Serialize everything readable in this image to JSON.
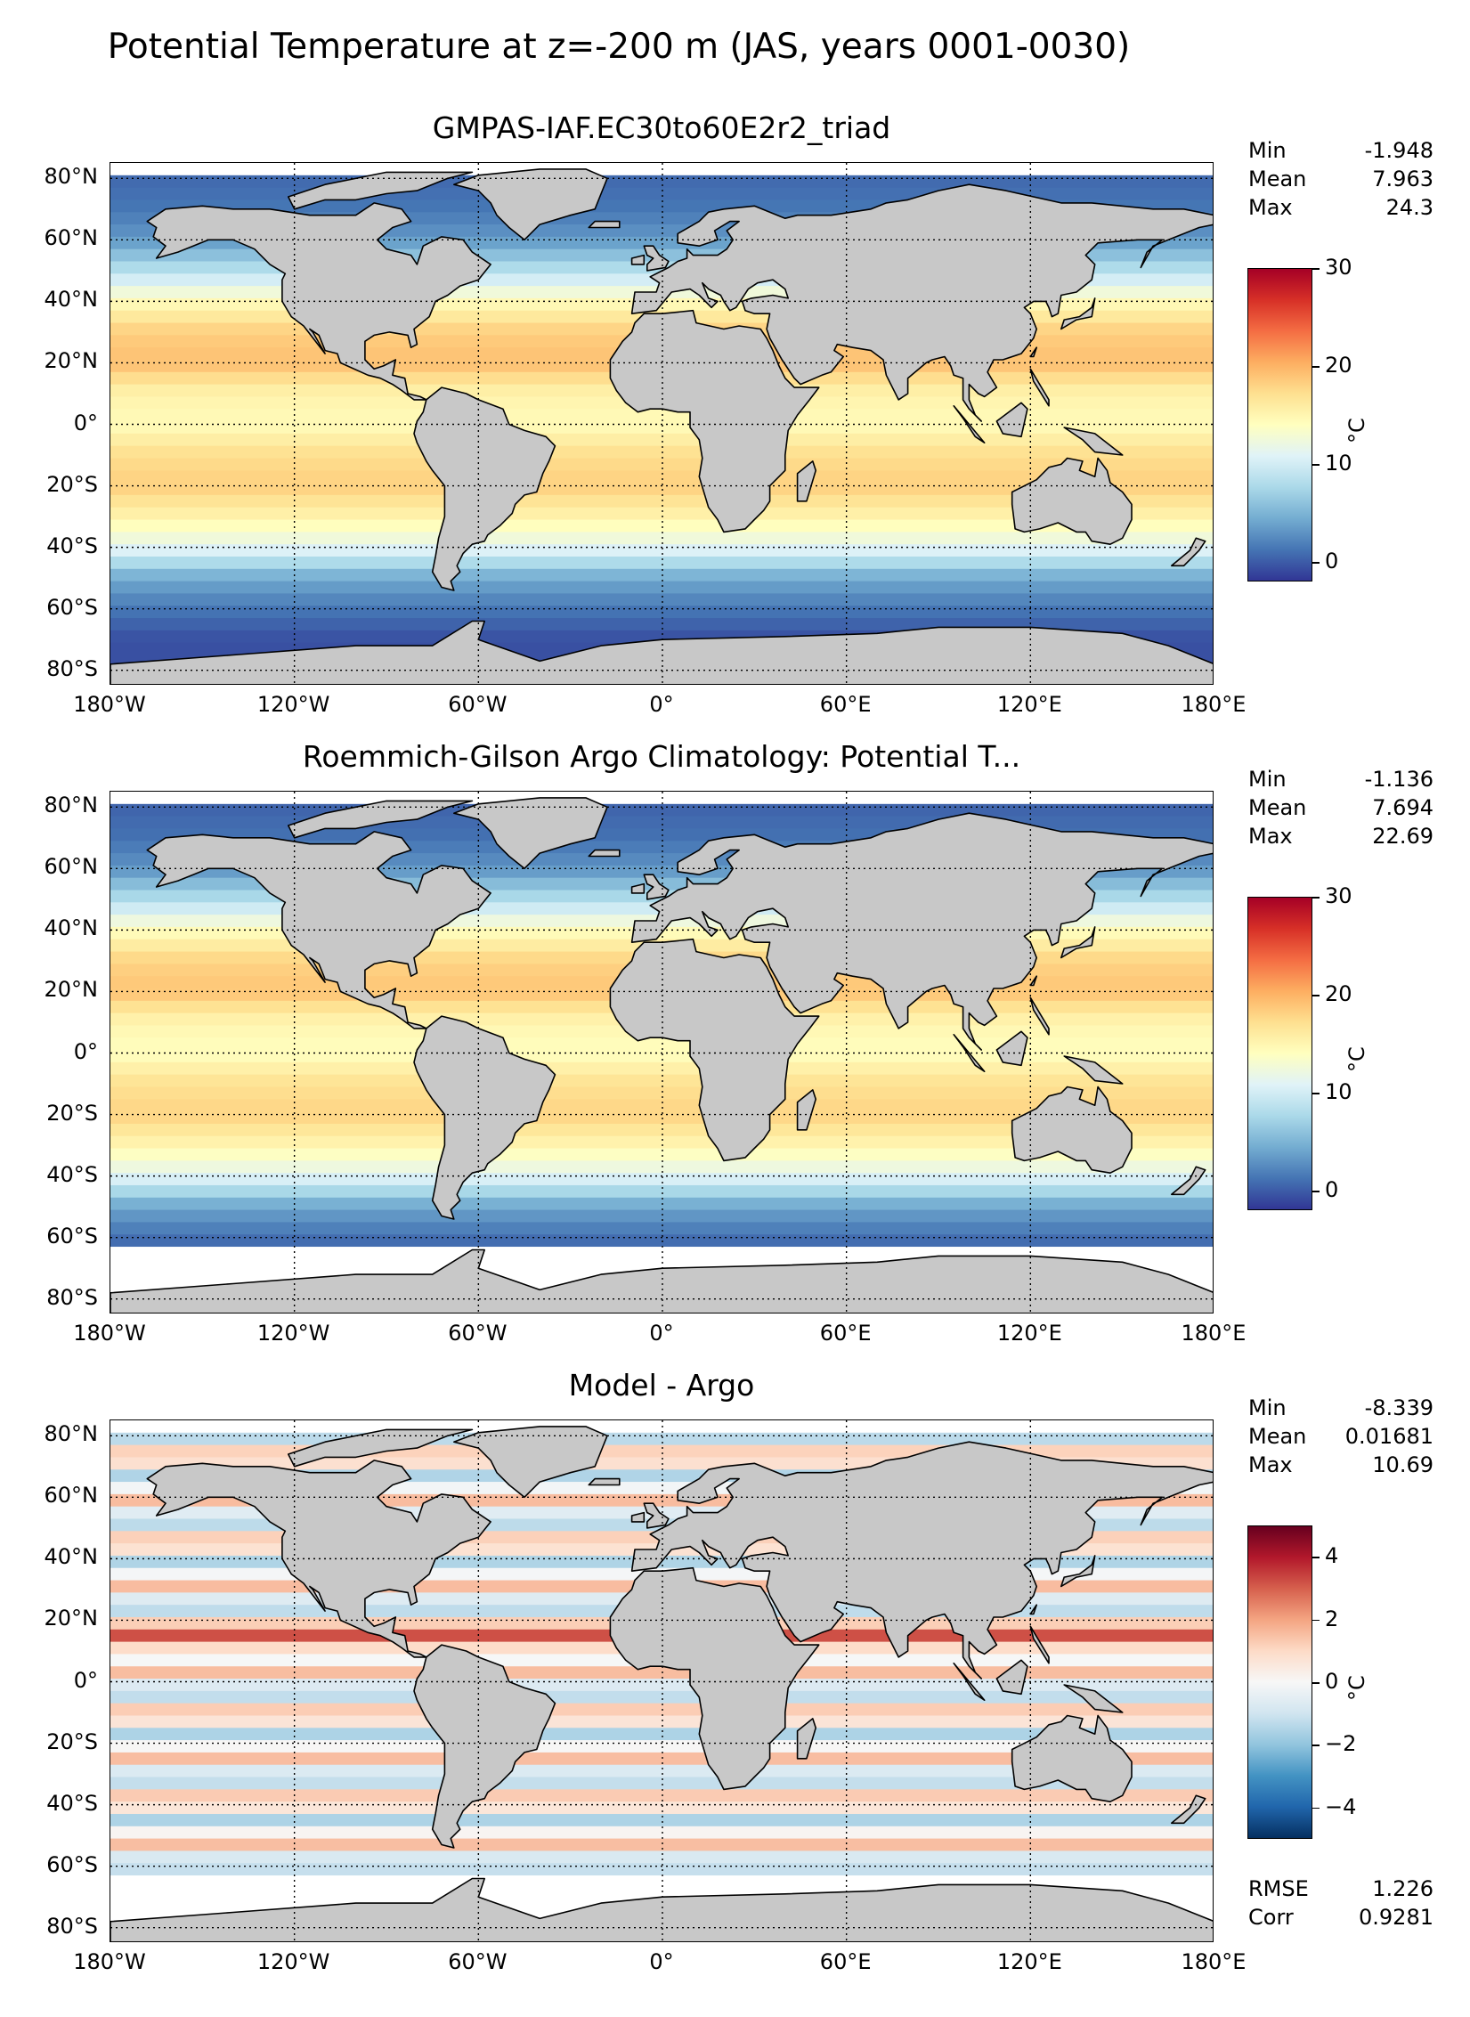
{
  "figure_title": "Potential Temperature at z=-200 m (JAS, years 0001-0030)",
  "chart_data": [
    {
      "type": "heatmap",
      "title": "GMPAS-IAF.EC30to60E2r2_triad",
      "projection": "equirectangular (world map, land masked in gray)",
      "x_ticks": [
        "180°W",
        "120°W",
        "60°W",
        "0°",
        "60°E",
        "120°E",
        "180°E"
      ],
      "y_ticks": [
        "80°N",
        "60°N",
        "40°N",
        "20°N",
        "0°",
        "20°S",
        "40°S",
        "60°S",
        "80°S"
      ],
      "stats": [
        {
          "label": "Min",
          "value": "-1.948"
        },
        {
          "label": "Mean",
          "value": "7.963"
        },
        {
          "label": "Max",
          "value": "24.3"
        }
      ],
      "colorbar": {
        "colormap": "RdYlBu_r",
        "range": [
          -2,
          30
        ],
        "ticks": [
          "30",
          "20",
          "10",
          "0"
        ],
        "label": "°C"
      }
    },
    {
      "type": "heatmap",
      "title": "Roemmich-Gilson Argo Climatology: Potential T...",
      "projection": "equirectangular (world map, land masked in gray)",
      "x_ticks": [
        "180°W",
        "120°W",
        "60°W",
        "0°",
        "60°E",
        "120°E",
        "180°E"
      ],
      "y_ticks": [
        "80°N",
        "60°N",
        "40°N",
        "20°N",
        "0°",
        "20°S",
        "40°S",
        "60°S",
        "80°S"
      ],
      "stats": [
        {
          "label": "Min",
          "value": "-1.136"
        },
        {
          "label": "Mean",
          "value": "7.694"
        },
        {
          "label": "Max",
          "value": "22.69"
        }
      ],
      "colorbar": {
        "colormap": "RdYlBu_r",
        "range": [
          -2,
          30
        ],
        "ticks": [
          "30",
          "20",
          "10",
          "0"
        ],
        "label": "°C"
      }
    },
    {
      "type": "heatmap",
      "title": "Model - Argo",
      "projection": "equirectangular (world map, land masked in gray)",
      "x_ticks": [
        "180°W",
        "120°W",
        "60°W",
        "0°",
        "60°E",
        "120°E",
        "180°E"
      ],
      "y_ticks": [
        "80°N",
        "60°N",
        "40°N",
        "20°N",
        "0°",
        "20°S",
        "40°S",
        "60°S",
        "80°S"
      ],
      "stats": [
        {
          "label": "Min",
          "value": "-8.339"
        },
        {
          "label": "Mean",
          "value": "0.01681"
        },
        {
          "label": "Max",
          "value": "10.69"
        }
      ],
      "extra_stats": [
        {
          "label": "RMSE",
          "value": "1.226"
        },
        {
          "label": "Corr",
          "value": "0.9281"
        }
      ],
      "colorbar": {
        "colormap": "RdBu_r",
        "range": [
          -5,
          5
        ],
        "ticks": [
          "4",
          "2",
          "0",
          "−2",
          "−4"
        ],
        "label": "°C"
      }
    }
  ],
  "colors": {
    "land": "#c8c8c8",
    "missing": "#ffffff",
    "gridline": "#000000"
  }
}
